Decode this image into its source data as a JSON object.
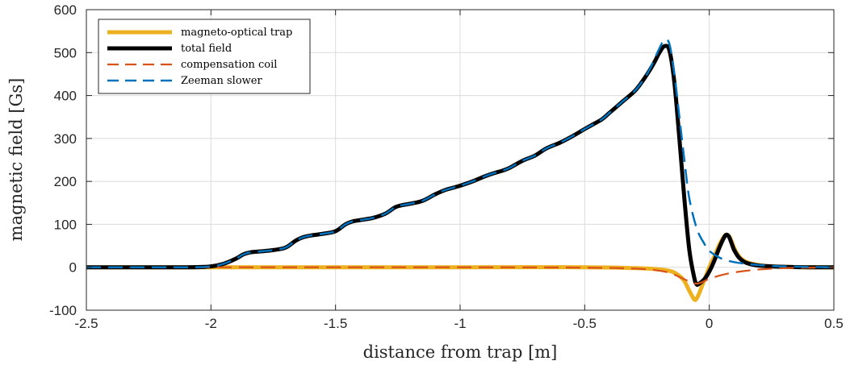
{
  "chart_data": {
    "type": "line",
    "title": "",
    "xlabel": "distance from trap [m]",
    "ylabel": "magnetic field [Gs]",
    "xlim": [
      -2.5,
      0.5
    ],
    "ylim": [
      -100,
      600
    ],
    "xticks": [
      -2.5,
      -2,
      -1.5,
      -1,
      -0.5,
      0,
      0.5
    ],
    "xtick_labels": [
      "-2.5",
      "-2",
      "-1.5",
      "-1",
      "-0.5",
      "0",
      "0.5"
    ],
    "yticks": [
      -100,
      0,
      100,
      200,
      300,
      400,
      500,
      600
    ],
    "ytick_labels": [
      "-100",
      "0",
      "100",
      "200",
      "300",
      "400",
      "500",
      "600"
    ],
    "grid": true,
    "legend_position": "top-left",
    "series": [
      {
        "name": "magneto-optical trap",
        "color": "#EDB120",
        "style": "solid",
        "x": [
          -2.5,
          -1.0,
          -0.5,
          -0.3,
          -0.2,
          -0.15,
          -0.12,
          -0.1,
          -0.08,
          -0.06,
          -0.05,
          -0.04,
          -0.03,
          -0.02,
          0.0,
          0.02,
          0.04,
          0.06,
          0.07,
          0.08,
          0.09,
          0.1,
          0.12,
          0.15,
          0.2,
          0.25,
          0.3,
          0.4,
          0.5
        ],
        "y": [
          0,
          0,
          0,
          -2,
          -5,
          -10,
          -20,
          -32,
          -55,
          -75,
          -72,
          -60,
          -45,
          -30,
          0,
          25,
          52,
          72,
          76,
          72,
          60,
          45,
          25,
          12,
          5,
          2,
          1,
          0,
          0
        ]
      },
      {
        "name": "total field",
        "color": "#000000",
        "style": "solid",
        "x": [
          -2.5,
          -2.1,
          -2.0,
          -1.95,
          -1.9,
          -1.87,
          -1.84,
          -1.8,
          -1.75,
          -1.7,
          -1.66,
          -1.63,
          -1.6,
          -1.55,
          -1.5,
          -1.46,
          -1.43,
          -1.4,
          -1.35,
          -1.3,
          -1.26,
          -1.23,
          -1.2,
          -1.15,
          -1.1,
          -1.06,
          -1.03,
          -1.0,
          -0.95,
          -0.9,
          -0.86,
          -0.83,
          -0.8,
          -0.75,
          -0.7,
          -0.66,
          -0.63,
          -0.6,
          -0.55,
          -0.5,
          -0.46,
          -0.43,
          -0.4,
          -0.35,
          -0.3,
          -0.27,
          -0.24,
          -0.22,
          -0.2,
          -0.18,
          -0.16,
          -0.14,
          -0.12,
          -0.1,
          -0.08,
          -0.06,
          -0.05,
          -0.04,
          -0.02,
          0.0,
          0.02,
          0.04,
          0.06,
          0.07,
          0.08,
          0.09,
          0.1,
          0.12,
          0.15,
          0.2,
          0.3,
          0.4,
          0.5
        ],
        "y": [
          0,
          0,
          2,
          8,
          20,
          30,
          35,
          37,
          40,
          46,
          62,
          70,
          74,
          78,
          84,
          100,
          107,
          110,
          115,
          125,
          140,
          145,
          148,
          155,
          170,
          180,
          185,
          190,
          200,
          212,
          220,
          225,
          232,
          248,
          260,
          275,
          283,
          290,
          305,
          322,
          335,
          345,
          360,
          385,
          410,
          432,
          458,
          478,
          500,
          515,
          505,
          430,
          300,
          160,
          40,
          -25,
          -40,
          -38,
          -28,
          -10,
          15,
          45,
          70,
          76,
          70,
          55,
          40,
          22,
          10,
          4,
          1,
          0,
          0
        ]
      },
      {
        "name": "compensation coil",
        "color": "#D95319",
        "style": "dashed",
        "x": [
          -2.5,
          -1.0,
          -0.5,
          -0.3,
          -0.2,
          -0.15,
          -0.1,
          -0.07,
          -0.05,
          -0.03,
          0.0,
          0.05,
          0.1,
          0.15,
          0.2,
          0.3,
          0.4,
          0.5
        ],
        "y": [
          0,
          0,
          -1,
          -3,
          -8,
          -15,
          -28,
          -35,
          -38,
          -35,
          -27,
          -18,
          -12,
          -8,
          -5,
          -2,
          -1,
          0
        ]
      },
      {
        "name": "Zeeman slower",
        "color": "#0072BD",
        "style": "dashed",
        "x": [
          -2.5,
          -2.1,
          -2.0,
          -1.95,
          -1.9,
          -1.87,
          -1.84,
          -1.8,
          -1.75,
          -1.7,
          -1.66,
          -1.63,
          -1.6,
          -1.55,
          -1.5,
          -1.46,
          -1.43,
          -1.4,
          -1.35,
          -1.3,
          -1.26,
          -1.23,
          -1.2,
          -1.15,
          -1.1,
          -1.06,
          -1.03,
          -1.0,
          -0.95,
          -0.9,
          -0.86,
          -0.83,
          -0.8,
          -0.75,
          -0.7,
          -0.66,
          -0.63,
          -0.6,
          -0.55,
          -0.5,
          -0.46,
          -0.43,
          -0.4,
          -0.35,
          -0.3,
          -0.27,
          -0.24,
          -0.22,
          -0.2,
          -0.18,
          -0.16,
          -0.14,
          -0.12,
          -0.1,
          -0.08,
          -0.05,
          -0.02,
          0.0,
          0.05,
          0.1,
          0.15,
          0.2,
          0.3,
          0.5
        ],
        "y": [
          0,
          0,
          2,
          8,
          20,
          30,
          35,
          37,
          40,
          46,
          62,
          70,
          74,
          78,
          84,
          100,
          107,
          110,
          115,
          125,
          140,
          145,
          148,
          155,
          170,
          180,
          185,
          190,
          200,
          212,
          220,
          225,
          232,
          248,
          260,
          275,
          283,
          290,
          305,
          322,
          335,
          345,
          360,
          385,
          410,
          432,
          460,
          485,
          510,
          530,
          520,
          450,
          350,
          250,
          160,
          90,
          55,
          38,
          20,
          12,
          8,
          5,
          2,
          0
        ]
      }
    ]
  }
}
